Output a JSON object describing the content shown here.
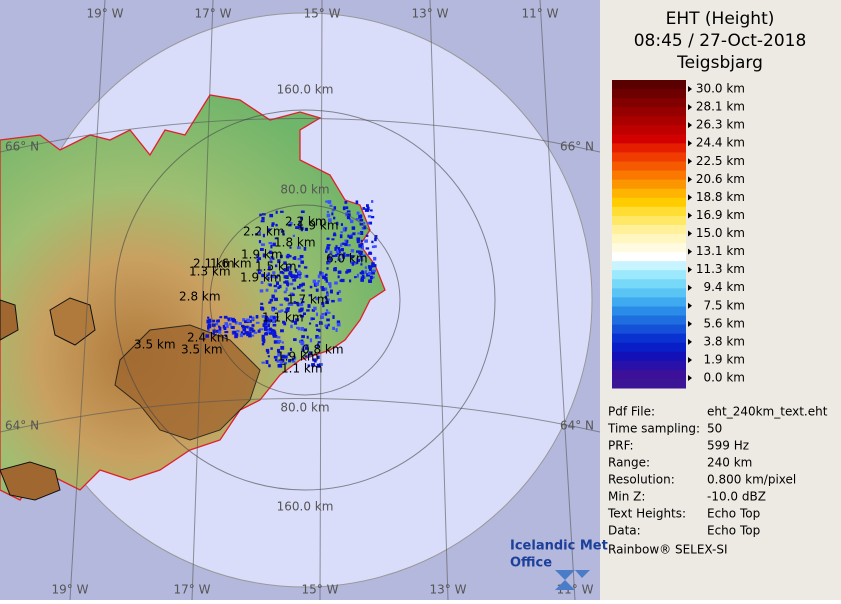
{
  "map": {
    "lon_labels_top": [
      "19° W",
      "17° W",
      "15° W",
      "13° W",
      "11° W"
    ],
    "lon_labels_bottom": [
      "19° W",
      "17° W",
      "15° W",
      "13° W",
      "11° W"
    ],
    "lat_labels_left": [
      "66° N",
      "64° N"
    ],
    "lat_labels_right": [
      "66° N",
      "64° N"
    ],
    "range_labels_top": [
      "160.0 km",
      "80.0 km"
    ],
    "range_labels_bottom": [
      "80.0 km",
      "160.0 km"
    ],
    "echo_labels": [
      "2.2 km",
      "1.9 km",
      "2.2 km",
      "1.8 km",
      "1.9 km",
      "6.0 km",
      "2.1 km",
      "1.6 km",
      "1.3 km",
      "1.5 km",
      "1.9 km",
      "2.8 km",
      "1.7 km",
      "1.1 km",
      "2.4 km",
      "3.5 km",
      "3.5 km",
      "1.9 km",
      "0.8 km",
      "1.1 km"
    ]
  },
  "panel": {
    "title": "EHT (Height)",
    "time": "08:45 / 27-Oct-2018",
    "station": "Teigsbjarg",
    "colorbar_labels": [
      "30.0 km",
      "28.1 km",
      "26.3 km",
      "24.4 km",
      "22.5 km",
      "20.6 km",
      "18.8 km",
      "16.9 km",
      "15.0 km",
      "13.1 km",
      "11.3 km",
      "9.4 km",
      "7.5 km",
      "5.6 km",
      "3.8 km",
      "1.9 km",
      "0.0 km"
    ],
    "info": [
      [
        "Pdf File:",
        "eht_240km_text.eht"
      ],
      [
        "Time sampling:",
        "50"
      ],
      [
        "PRF:",
        "599 Hz"
      ],
      [
        "Range:",
        "240 km"
      ],
      [
        "Resolution:",
        "0.800 km/pixel"
      ],
      [
        "Min Z:",
        "-10.0 dBZ"
      ],
      [
        "Text Heights:",
        "Echo Top"
      ],
      [
        "Data:",
        "Echo Top"
      ]
    ],
    "logo": [
      "Icelandic Met",
      "Office"
    ],
    "footer": "Rainbow® SELEX-SI"
  }
}
